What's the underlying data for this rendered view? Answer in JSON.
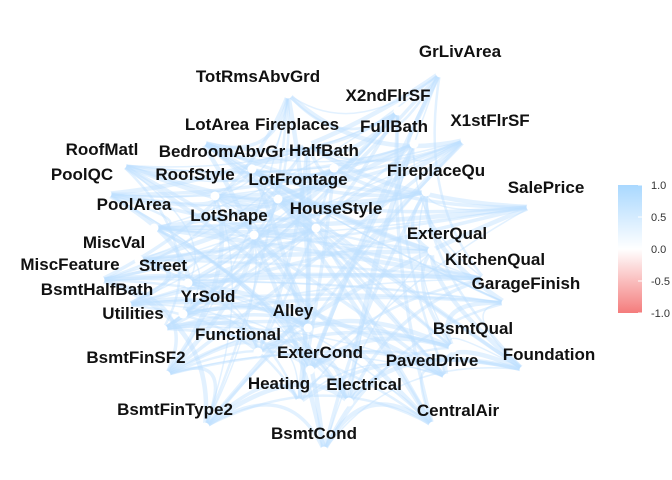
{
  "chart_data": {
    "type": "network",
    "description_of_encoding": "",
    "nodes": [
      "GrLivArea",
      "TotRmsAbvGrd",
      "X2ndFlrSF",
      "LotArea",
      "Fireplaces",
      "FullBath",
      "X1stFlrSF",
      "RoofMatl",
      "BedroomAbvGr",
      "HalfBath",
      "PoolQC",
      "RoofStyle",
      "LotFrontage",
      "FireplaceQu",
      "SalePrice",
      "PoolArea",
      "LotShape",
      "HouseStyle",
      "ExterQual",
      "MiscVal",
      "KitchenQual",
      "MiscFeature",
      "Street",
      "GarageFinish",
      "BsmtHalfBath",
      "YrSold",
      "Alley",
      "Utilities",
      "BsmtQual",
      "Functional",
      "ExterCond",
      "BsmtFinSF2",
      "PavedDrive",
      "Foundation",
      "Heating",
      "Electrical",
      "BsmtFinType2",
      "CentralAir",
      "BsmtCond"
    ],
    "legend": {
      "ticks": [
        "1.0",
        "0.5",
        "0.0",
        "-0.5",
        "-1.0"
      ],
      "range": [
        -1,
        1
      ],
      "colors": {
        "high": "#a9d8ff",
        "mid": "#ffffff",
        "low": "#f47c7c"
      }
    },
    "edge_color": "#bfe1ff",
    "node_color": "#ffffff"
  }
}
